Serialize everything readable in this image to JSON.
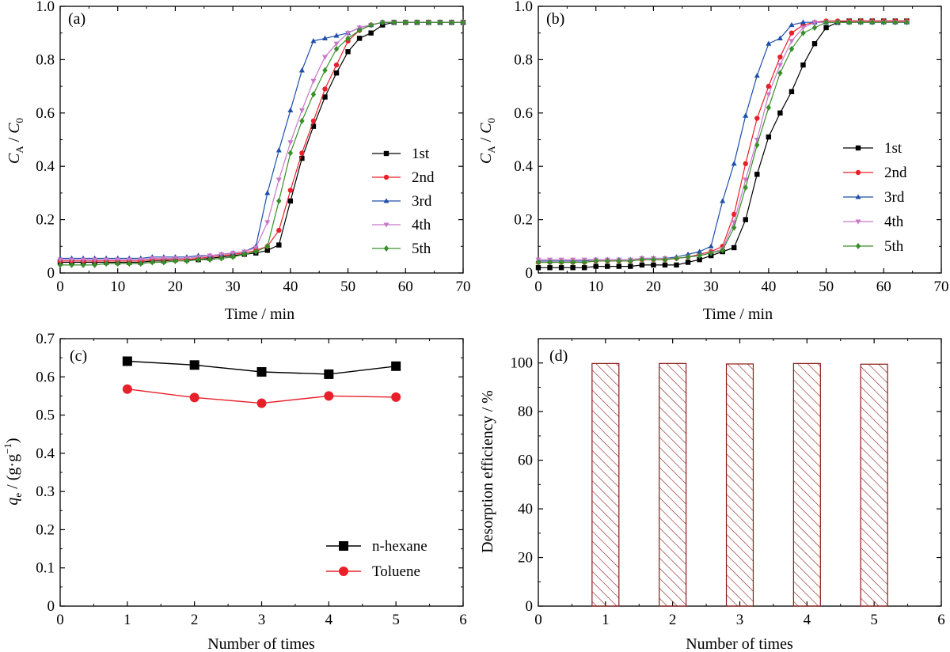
{
  "chart_data": [
    {
      "id": "a",
      "panel_label": "(a)",
      "type": "line",
      "xlabel": "Time / min",
      "ylabel": "C_A / C_0",
      "ylabel_parts": {
        "var": "C",
        "sub": "A",
        "sep": " / ",
        "var2": "C",
        "sub2": "0"
      },
      "xlim": [
        0,
        70
      ],
      "ylim": [
        0,
        1.0
      ],
      "xticks": [
        0,
        10,
        20,
        30,
        40,
        50,
        60,
        70
      ],
      "yticks": [
        0,
        0.2,
        0.4,
        0.6,
        0.8,
        1.0
      ],
      "xtick_labels": [
        "0",
        "10",
        "20",
        "30",
        "40",
        "50",
        "60",
        "70"
      ],
      "ytick_labels": [
        "0",
        "0.2",
        "0.4",
        "0.6",
        "0.8",
        "1.0"
      ],
      "grid": false,
      "legend_position": "right",
      "x": [
        0,
        2,
        4,
        6,
        8,
        10,
        12,
        14,
        16,
        18,
        20,
        22,
        24,
        26,
        28,
        30,
        32,
        34,
        36,
        38,
        40,
        42,
        44,
        46,
        48,
        50,
        52,
        54,
        56,
        58,
        60,
        62,
        64,
        66,
        68,
        70
      ],
      "series": [
        {
          "name": "1st",
          "color": "#000000",
          "marker": "square",
          "values": [
            0.04,
            0.04,
            0.04,
            0.04,
            0.04,
            0.04,
            0.04,
            0.04,
            0.045,
            0.045,
            0.05,
            0.05,
            0.05,
            0.055,
            0.06,
            0.065,
            0.07,
            0.075,
            0.085,
            0.105,
            0.27,
            0.43,
            0.55,
            0.66,
            0.75,
            0.83,
            0.88,
            0.9,
            0.93,
            0.94,
            0.94,
            0.94,
            0.94,
            0.94,
            0.94,
            0.94
          ]
        },
        {
          "name": "2nd",
          "color": "#e8202a",
          "marker": "circle",
          "values": [
            0.045,
            0.045,
            0.045,
            0.045,
            0.045,
            0.045,
            0.045,
            0.045,
            0.05,
            0.05,
            0.05,
            0.05,
            0.055,
            0.06,
            0.065,
            0.07,
            0.075,
            0.085,
            0.1,
            0.16,
            0.31,
            0.45,
            0.57,
            0.69,
            0.78,
            0.87,
            0.91,
            0.93,
            0.94,
            0.94,
            0.94,
            0.94,
            0.94,
            0.94,
            0.94,
            0.94
          ]
        },
        {
          "name": "3rd",
          "color": "#1f4fa8",
          "marker": "triangle-up",
          "values": [
            0.055,
            0.055,
            0.055,
            0.055,
            0.055,
            0.055,
            0.055,
            0.055,
            0.06,
            0.06,
            0.06,
            0.06,
            0.065,
            0.065,
            0.07,
            0.075,
            0.08,
            0.1,
            0.3,
            0.46,
            0.61,
            0.76,
            0.87,
            0.88,
            0.89,
            0.9,
            0.92,
            0.93,
            0.94,
            0.94,
            0.94,
            0.94,
            0.94,
            0.94,
            0.94,
            0.94
          ]
        },
        {
          "name": "4th",
          "color": "#c878c8",
          "marker": "triangle-down",
          "values": [
            0.05,
            0.05,
            0.05,
            0.05,
            0.05,
            0.05,
            0.05,
            0.05,
            0.055,
            0.055,
            0.055,
            0.055,
            0.06,
            0.065,
            0.07,
            0.075,
            0.08,
            0.095,
            0.19,
            0.35,
            0.49,
            0.61,
            0.72,
            0.81,
            0.86,
            0.9,
            0.92,
            0.93,
            0.94,
            0.94,
            0.94,
            0.94,
            0.94,
            0.94,
            0.94,
            0.94
          ]
        },
        {
          "name": "5th",
          "color": "#3a8f2a",
          "marker": "diamond",
          "values": [
            0.03,
            0.03,
            0.03,
            0.03,
            0.035,
            0.035,
            0.035,
            0.035,
            0.04,
            0.04,
            0.045,
            0.045,
            0.05,
            0.05,
            0.055,
            0.06,
            0.07,
            0.08,
            0.1,
            0.27,
            0.45,
            0.57,
            0.67,
            0.76,
            0.84,
            0.88,
            0.91,
            0.93,
            0.94,
            0.94,
            0.94,
            0.94,
            0.94,
            0.94,
            0.94,
            0.94
          ]
        }
      ]
    },
    {
      "id": "b",
      "panel_label": "(b)",
      "type": "line",
      "xlabel": "Time / min",
      "ylabel": "C_A / C_0",
      "ylabel_parts": {
        "var": "C",
        "sub": "A",
        "sep": " / ",
        "var2": "C",
        "sub2": "0"
      },
      "xlim": [
        0,
        70
      ],
      "ylim": [
        0,
        1.0
      ],
      "xticks": [
        0,
        10,
        20,
        30,
        40,
        50,
        60,
        70
      ],
      "yticks": [
        0,
        0.2,
        0.4,
        0.6,
        0.8,
        1.0
      ],
      "xtick_labels": [
        "0",
        "10",
        "20",
        "30",
        "40",
        "50",
        "60",
        "70"
      ],
      "ytick_labels": [
        "0",
        "0.2",
        "0.4",
        "0.6",
        "0.8",
        "1.0"
      ],
      "grid": false,
      "legend_position": "right",
      "x": [
        0,
        2,
        4,
        6,
        8,
        10,
        12,
        14,
        16,
        18,
        20,
        22,
        24,
        26,
        28,
        30,
        32,
        34,
        36,
        38,
        40,
        42,
        44,
        46,
        48,
        50,
        52,
        54,
        56,
        58,
        60,
        62,
        64
      ],
      "series": [
        {
          "name": "1st",
          "color": "#000000",
          "marker": "square",
          "values": [
            0.02,
            0.02,
            0.02,
            0.02,
            0.02,
            0.025,
            0.025,
            0.025,
            0.025,
            0.03,
            0.03,
            0.03,
            0.03,
            0.04,
            0.05,
            0.065,
            0.08,
            0.095,
            0.2,
            0.37,
            0.51,
            0.6,
            0.68,
            0.78,
            0.86,
            0.92,
            0.94,
            0.945,
            0.945,
            0.945,
            0.945,
            0.945,
            0.945
          ]
        },
        {
          "name": "2nd",
          "color": "#e8202a",
          "marker": "circle",
          "values": [
            0.04,
            0.04,
            0.04,
            0.04,
            0.04,
            0.045,
            0.045,
            0.045,
            0.045,
            0.05,
            0.05,
            0.05,
            0.055,
            0.06,
            0.07,
            0.08,
            0.1,
            0.22,
            0.41,
            0.58,
            0.7,
            0.81,
            0.9,
            0.93,
            0.94,
            0.945,
            0.945,
            0.945,
            0.945,
            0.945,
            0.945,
            0.945,
            0.945
          ]
        },
        {
          "name": "3rd",
          "color": "#1f4fa8",
          "marker": "triangle-up",
          "values": [
            0.045,
            0.045,
            0.045,
            0.045,
            0.045,
            0.05,
            0.05,
            0.05,
            0.05,
            0.055,
            0.055,
            0.055,
            0.06,
            0.07,
            0.08,
            0.1,
            0.27,
            0.41,
            0.59,
            0.74,
            0.86,
            0.88,
            0.93,
            0.94,
            0.94,
            0.94,
            0.94,
            0.94,
            0.94,
            0.94,
            0.94,
            0.94,
            0.94
          ]
        },
        {
          "name": "4th",
          "color": "#c878c8",
          "marker": "triangle-down",
          "values": [
            0.05,
            0.05,
            0.05,
            0.05,
            0.05,
            0.05,
            0.05,
            0.05,
            0.05,
            0.055,
            0.055,
            0.055,
            0.055,
            0.06,
            0.065,
            0.075,
            0.09,
            0.19,
            0.35,
            0.5,
            0.67,
            0.78,
            0.87,
            0.92,
            0.94,
            0.94,
            0.94,
            0.94,
            0.94,
            0.94,
            0.94,
            0.94,
            0.94
          ]
        },
        {
          "name": "5th",
          "color": "#3a8f2a",
          "marker": "diamond",
          "values": [
            0.04,
            0.04,
            0.04,
            0.04,
            0.04,
            0.045,
            0.045,
            0.045,
            0.045,
            0.05,
            0.05,
            0.05,
            0.055,
            0.06,
            0.065,
            0.075,
            0.085,
            0.17,
            0.32,
            0.48,
            0.62,
            0.75,
            0.84,
            0.9,
            0.92,
            0.94,
            0.94,
            0.94,
            0.94,
            0.94,
            0.94,
            0.94,
            0.94
          ]
        }
      ]
    },
    {
      "id": "c",
      "panel_label": "(c)",
      "type": "line",
      "xlabel": "Number of times",
      "ylabel": "q_e / (g·g^-1)",
      "ylabel_parts": {
        "var": "q",
        "sub": "e",
        "sep": " / (g·g",
        "sup": "−1",
        "tail": ")"
      },
      "xlim": [
        0,
        6
      ],
      "ylim": [
        0,
        0.7
      ],
      "xticks": [
        0,
        1,
        2,
        3,
        4,
        5,
        6
      ],
      "yticks": [
        0,
        0.1,
        0.2,
        0.3,
        0.4,
        0.5,
        0.6,
        0.7
      ],
      "xtick_labels": [
        "0",
        "1",
        "2",
        "3",
        "4",
        "5",
        "6"
      ],
      "ytick_labels": [
        "0",
        "0.1",
        "0.2",
        "0.3",
        "0.4",
        "0.5",
        "0.6",
        "0.7"
      ],
      "grid": false,
      "legend_position": "bottom-right",
      "x": [
        1,
        2,
        3,
        4,
        5
      ],
      "series": [
        {
          "name": "n-hexane",
          "color": "#000000",
          "marker": "square",
          "values": [
            0.641,
            0.631,
            0.613,
            0.607,
            0.628
          ]
        },
        {
          "name": "Toluene",
          "color": "#e8202a",
          "marker": "circle",
          "values": [
            0.568,
            0.546,
            0.531,
            0.55,
            0.547
          ]
        }
      ]
    },
    {
      "id": "d",
      "panel_label": "(d)",
      "type": "bar",
      "xlabel": "Number of times",
      "ylabel": "Desorption efficiency / %",
      "xlim": [
        0,
        6
      ],
      "ylim": [
        0,
        110
      ],
      "xticks": [
        0,
        1,
        2,
        3,
        4,
        5,
        6
      ],
      "yticks": [
        0,
        20,
        40,
        60,
        80,
        100
      ],
      "xtick_labels": [
        "0",
        "1",
        "2",
        "3",
        "4",
        "5",
        "6"
      ],
      "ytick_labels": [
        "0",
        "20",
        "40",
        "60",
        "80",
        "100"
      ],
      "grid": false,
      "bar_color": "#8b1a1a",
      "bar_fill": "hatched",
      "categories": [
        1,
        2,
        3,
        4,
        5
      ],
      "values": [
        99.8,
        99.8,
        99.6,
        99.8,
        99.5
      ]
    }
  ]
}
